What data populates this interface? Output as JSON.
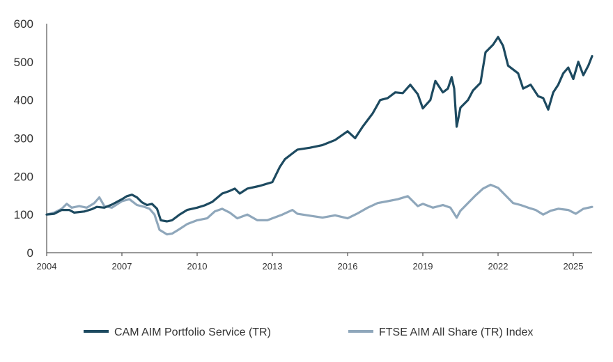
{
  "chart_data": {
    "type": "line",
    "title": "",
    "xlabel": "",
    "ylabel": "",
    "ylim": [
      0,
      600
    ],
    "xlim": [
      2004,
      2025.75
    ],
    "grid": false,
    "legend_position": "bottom",
    "yticks": [
      "0",
      "100",
      "200",
      "300",
      "400",
      "500",
      "600"
    ],
    "xticks": [
      "2004",
      "2007",
      "2010",
      "2013",
      "2016",
      "2019",
      "2022",
      "2025"
    ],
    "colors": {
      "cam": "#1d4a60",
      "ftse": "#8fa7bb",
      "axis": "#333333"
    },
    "series": [
      {
        "name": "CAM AIM Portfolio Service (TR)",
        "points": [
          [
            2004,
            100
          ],
          [
            2004.3,
            102
          ],
          [
            2004.6,
            112
          ],
          [
            2004.9,
            112
          ],
          [
            2005.1,
            105
          ],
          [
            2005.5,
            108
          ],
          [
            2005.8,
            114
          ],
          [
            2006,
            120
          ],
          [
            2006.3,
            118
          ],
          [
            2006.6,
            126
          ],
          [
            2007,
            140
          ],
          [
            2007.2,
            148
          ],
          [
            2007.4,
            152
          ],
          [
            2007.6,
            145
          ],
          [
            2007.8,
            132
          ],
          [
            2008,
            125
          ],
          [
            2008.2,
            128
          ],
          [
            2008.4,
            115
          ],
          [
            2008.55,
            85
          ],
          [
            2008.8,
            82
          ],
          [
            2009,
            85
          ],
          [
            2009.3,
            100
          ],
          [
            2009.6,
            112
          ],
          [
            2010,
            118
          ],
          [
            2010.3,
            124
          ],
          [
            2010.6,
            133
          ],
          [
            2011,
            155
          ],
          [
            2011.3,
            162
          ],
          [
            2011.5,
            168
          ],
          [
            2011.7,
            155
          ],
          [
            2012,
            168
          ],
          [
            2012.5,
            175
          ],
          [
            2013,
            185
          ],
          [
            2013.3,
            225
          ],
          [
            2013.5,
            245
          ],
          [
            2013.8,
            260
          ],
          [
            2014,
            270
          ],
          [
            2014.5,
            275
          ],
          [
            2015,
            282
          ],
          [
            2015.5,
            295
          ],
          [
            2016,
            318
          ],
          [
            2016.3,
            300
          ],
          [
            2016.6,
            330
          ],
          [
            2017,
            365
          ],
          [
            2017.3,
            400
          ],
          [
            2017.6,
            405
          ],
          [
            2017.9,
            420
          ],
          [
            2018.2,
            418
          ],
          [
            2018.5,
            440
          ],
          [
            2018.8,
            415
          ],
          [
            2019,
            378
          ],
          [
            2019.3,
            400
          ],
          [
            2019.5,
            450
          ],
          [
            2019.8,
            420
          ],
          [
            2020,
            430
          ],
          [
            2020.15,
            460
          ],
          [
            2020.25,
            430
          ],
          [
            2020.35,
            330
          ],
          [
            2020.5,
            380
          ],
          [
            2020.8,
            400
          ],
          [
            2021,
            425
          ],
          [
            2021.3,
            445
          ],
          [
            2021.5,
            525
          ],
          [
            2021.8,
            545
          ],
          [
            2022,
            565
          ],
          [
            2022.2,
            542
          ],
          [
            2022.4,
            490
          ],
          [
            2022.6,
            480
          ],
          [
            2022.8,
            470
          ],
          [
            2023,
            430
          ],
          [
            2023.3,
            440
          ],
          [
            2023.6,
            410
          ],
          [
            2023.8,
            405
          ],
          [
            2024,
            375
          ],
          [
            2024.2,
            420
          ],
          [
            2024.4,
            440
          ],
          [
            2024.6,
            470
          ],
          [
            2024.8,
            485
          ],
          [
            2025,
            455
          ],
          [
            2025.2,
            500
          ],
          [
            2025.4,
            465
          ],
          [
            2025.6,
            490
          ],
          [
            2025.75,
            515
          ]
        ]
      },
      {
        "name": "FTSE AIM All Share (TR) Index",
        "points": [
          [
            2004,
            100
          ],
          [
            2004.3,
            105
          ],
          [
            2004.6,
            115
          ],
          [
            2004.8,
            128
          ],
          [
            2005,
            118
          ],
          [
            2005.3,
            122
          ],
          [
            2005.6,
            118
          ],
          [
            2005.9,
            130
          ],
          [
            2006.1,
            145
          ],
          [
            2006.3,
            122
          ],
          [
            2006.6,
            118
          ],
          [
            2007,
            135
          ],
          [
            2007.3,
            140
          ],
          [
            2007.6,
            125
          ],
          [
            2007.9,
            120
          ],
          [
            2008.1,
            115
          ],
          [
            2008.3,
            100
          ],
          [
            2008.5,
            60
          ],
          [
            2008.8,
            48
          ],
          [
            2009,
            50
          ],
          [
            2009.3,
            62
          ],
          [
            2009.6,
            75
          ],
          [
            2010,
            85
          ],
          [
            2010.4,
            90
          ],
          [
            2010.7,
            108
          ],
          [
            2011,
            115
          ],
          [
            2011.3,
            105
          ],
          [
            2011.6,
            90
          ],
          [
            2012,
            100
          ],
          [
            2012.4,
            85
          ],
          [
            2012.8,
            85
          ],
          [
            2013,
            90
          ],
          [
            2013.4,
            100
          ],
          [
            2013.8,
            112
          ],
          [
            2014,
            102
          ],
          [
            2014.4,
            98
          ],
          [
            2015,
            92
          ],
          [
            2015.5,
            98
          ],
          [
            2016,
            90
          ],
          [
            2016.4,
            103
          ],
          [
            2016.8,
            118
          ],
          [
            2017.2,
            130
          ],
          [
            2017.6,
            135
          ],
          [
            2018,
            140
          ],
          [
            2018.4,
            148
          ],
          [
            2018.8,
            122
          ],
          [
            2019,
            128
          ],
          [
            2019.4,
            118
          ],
          [
            2019.8,
            125
          ],
          [
            2020.1,
            118
          ],
          [
            2020.35,
            92
          ],
          [
            2020.5,
            110
          ],
          [
            2020.8,
            130
          ],
          [
            2021.1,
            150
          ],
          [
            2021.4,
            168
          ],
          [
            2021.7,
            178
          ],
          [
            2022,
            170
          ],
          [
            2022.3,
            150
          ],
          [
            2022.6,
            130
          ],
          [
            2022.9,
            125
          ],
          [
            2023.2,
            118
          ],
          [
            2023.5,
            112
          ],
          [
            2023.8,
            100
          ],
          [
            2024.1,
            110
          ],
          [
            2024.4,
            115
          ],
          [
            2024.8,
            112
          ],
          [
            2025.1,
            102
          ],
          [
            2025.4,
            115
          ],
          [
            2025.75,
            120
          ]
        ]
      }
    ]
  }
}
